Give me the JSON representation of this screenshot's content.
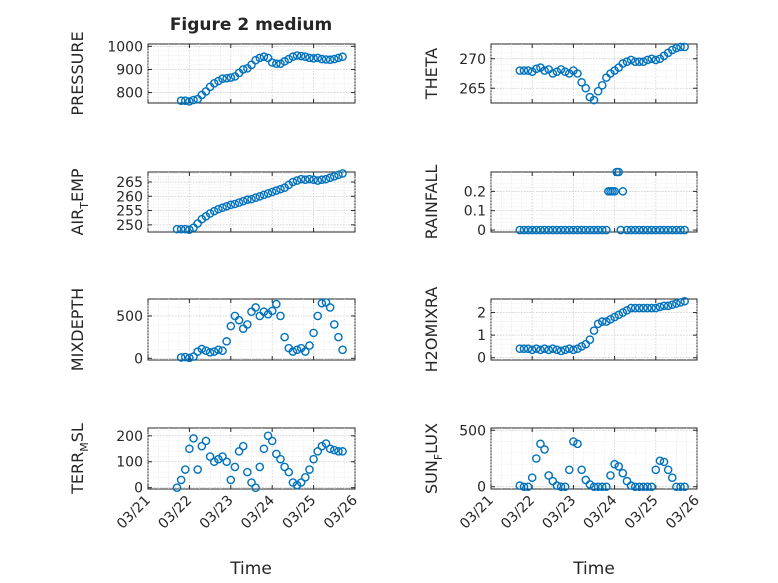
{
  "figure": {
    "title": "Figure 2 medium"
  },
  "colors": {
    "marker": "#0072bd",
    "axis": "#262626"
  },
  "shared_x": {
    "label": "Time",
    "ticks": [
      0,
      1,
      2,
      3,
      4,
      5
    ],
    "tick_labels": [
      "03/21",
      "03/22",
      "03/23",
      "03/24",
      "03/25",
      "03/26"
    ],
    "range": [
      0,
      5
    ]
  },
  "chart_data": [
    {
      "id": "pressure",
      "type": "scatter",
      "ylabel": "PRESSURE",
      "ylabel_sub": "",
      "ylabel_tail": "",
      "ylim": [
        755,
        1010
      ],
      "yticks": [
        800,
        900,
        1000
      ],
      "ytick_labels": [
        "800",
        "900",
        "1000"
      ],
      "x": [
        0.8,
        0.9,
        1.0,
        1.1,
        1.2,
        1.3,
        1.4,
        1.5,
        1.6,
        1.7,
        1.8,
        1.9,
        2.0,
        2.1,
        2.2,
        2.3,
        2.4,
        2.5,
        2.6,
        2.7,
        2.8,
        2.9,
        3.0,
        3.1,
        3.2,
        3.3,
        3.4,
        3.5,
        3.6,
        3.7,
        3.8,
        3.9,
        4.0,
        4.1,
        4.2,
        4.3,
        4.4,
        4.5,
        4.6,
        4.7
      ],
      "y": [
        765,
        765,
        762,
        768,
        772,
        790,
        805,
        825,
        840,
        850,
        860,
        862,
        865,
        870,
        885,
        900,
        905,
        920,
        940,
        950,
        955,
        950,
        930,
        925,
        925,
        935,
        945,
        955,
        960,
        958,
        955,
        950,
        948,
        950,
        945,
        943,
        942,
        945,
        950,
        955
      ]
    },
    {
      "id": "theta",
      "type": "scatter",
      "ylabel": "THETA",
      "ylabel_sub": "",
      "ylabel_tail": "",
      "ylim": [
        262.5,
        272.5
      ],
      "yticks": [
        265,
        270
      ],
      "ytick_labels": [
        "265",
        "270"
      ],
      "x": [
        0.7,
        0.8,
        0.9,
        1.0,
        1.1,
        1.2,
        1.3,
        1.4,
        1.5,
        1.6,
        1.7,
        1.8,
        1.9,
        2.0,
        2.1,
        2.2,
        2.3,
        2.4,
        2.5,
        2.6,
        2.7,
        2.8,
        2.9,
        3.0,
        3.1,
        3.2,
        3.3,
        3.4,
        3.5,
        3.6,
        3.7,
        3.8,
        3.9,
        4.0,
        4.1,
        4.2,
        4.3,
        4.4,
        4.5,
        4.6,
        4.7
      ],
      "y": [
        268,
        268,
        268,
        267.8,
        268.3,
        268.5,
        268,
        268.2,
        267.5,
        267.8,
        268.2,
        267.8,
        267.5,
        268,
        267.5,
        266,
        265,
        263.5,
        263,
        264.5,
        265.5,
        266.8,
        267.5,
        268,
        268.5,
        269.2,
        269.5,
        269.8,
        269.5,
        269.5,
        269.5,
        269.8,
        270,
        269.8,
        270,
        270.5,
        271,
        271.5,
        271.8,
        272,
        272
      ]
    },
    {
      "id": "air_temp",
      "type": "scatter",
      "ylabel": "AIR",
      "ylabel_sub": "T",
      "ylabel_tail": "EMP",
      "ylim": [
        247.5,
        268.5
      ],
      "yticks": [
        250,
        255,
        260,
        265
      ],
      "ytick_labels": [
        "250",
        "255",
        "260",
        "265"
      ],
      "x": [
        0.7,
        0.8,
        0.9,
        1.0,
        1.1,
        1.2,
        1.3,
        1.4,
        1.5,
        1.6,
        1.7,
        1.8,
        1.9,
        2.0,
        2.1,
        2.2,
        2.3,
        2.4,
        2.5,
        2.6,
        2.7,
        2.8,
        2.9,
        3.0,
        3.1,
        3.2,
        3.3,
        3.4,
        3.5,
        3.6,
        3.7,
        3.8,
        3.9,
        4.0,
        4.1,
        4.2,
        4.3,
        4.4,
        4.5,
        4.6,
        4.7
      ],
      "y": [
        248.5,
        248.5,
        248.5,
        248.3,
        249,
        250.5,
        252,
        253,
        254,
        254.8,
        255.5,
        256,
        256.5,
        257,
        257.3,
        257.8,
        258.3,
        258.8,
        259,
        259.5,
        260,
        260.5,
        261,
        261.5,
        262,
        262.5,
        263,
        264,
        265,
        265.5,
        266,
        265.8,
        266,
        265.8,
        265.5,
        265.8,
        266,
        266.5,
        267,
        267.5,
        268
      ]
    },
    {
      "id": "rainfall",
      "type": "scatter",
      "ylabel": "RAINFALL",
      "ylabel_sub": "",
      "ylabel_tail": "",
      "ylim": [
        -0.01,
        0.3
      ],
      "yticks": [
        0,
        0.1,
        0.2
      ],
      "ytick_labels": [
        "0",
        "0.1",
        "0.2"
      ],
      "x": [
        0.7,
        0.8,
        0.9,
        1.0,
        1.1,
        1.2,
        1.3,
        1.4,
        1.5,
        1.6,
        1.7,
        1.8,
        1.9,
        2.0,
        2.1,
        2.2,
        2.3,
        2.4,
        2.5,
        2.6,
        2.7,
        2.8,
        2.85,
        2.9,
        2.95,
        3.0,
        3.05,
        3.1,
        3.15,
        3.2,
        3.3,
        3.4,
        3.5,
        3.6,
        3.7,
        3.8,
        3.9,
        4.0,
        4.1,
        4.2,
        4.3,
        4.4,
        4.5,
        4.6,
        4.7
      ],
      "y": [
        0,
        0,
        0,
        0,
        0,
        0,
        0,
        0,
        0,
        0,
        0,
        0,
        0,
        0,
        0,
        0,
        0,
        0,
        0,
        0,
        0,
        0,
        0.2,
        0.2,
        0.2,
        0.2,
        0.3,
        0.3,
        0,
        0.2,
        0,
        0,
        0,
        0,
        0,
        0,
        0,
        0,
        0,
        0,
        0,
        0,
        0,
        0,
        0
      ]
    },
    {
      "id": "mixdepth",
      "type": "scatter",
      "ylabel": "MIXDEPTH",
      "ylabel_sub": "",
      "ylabel_tail": "",
      "ylim": [
        -20,
        700
      ],
      "yticks": [
        0,
        500
      ],
      "ytick_labels": [
        "0",
        "500"
      ],
      "x": [
        0.8,
        0.9,
        1.0,
        1.1,
        1.2,
        1.3,
        1.4,
        1.5,
        1.6,
        1.7,
        1.8,
        1.9,
        2.0,
        2.1,
        2.2,
        2.3,
        2.4,
        2.5,
        2.6,
        2.7,
        2.8,
        2.9,
        3.0,
        3.1,
        3.2,
        3.3,
        3.4,
        3.5,
        3.6,
        3.7,
        3.8,
        3.9,
        4.0,
        4.1,
        4.2,
        4.3,
        4.4,
        4.5,
        4.6,
        4.7
      ],
      "y": [
        10,
        15,
        5,
        20,
        80,
        110,
        90,
        70,
        80,
        100,
        90,
        200,
        380,
        500,
        450,
        350,
        400,
        550,
        600,
        500,
        550,
        520,
        560,
        640,
        500,
        250,
        120,
        80,
        100,
        120,
        80,
        150,
        300,
        500,
        650,
        660,
        600,
        400,
        250,
        100
      ]
    },
    {
      "id": "h2omixra",
      "type": "scatter",
      "ylabel": "H2OMIXRA",
      "ylabel_sub": "",
      "ylabel_tail": "",
      "ylim": [
        -0.1,
        2.6
      ],
      "yticks": [
        0,
        1,
        2
      ],
      "ytick_labels": [
        "0",
        "1",
        "2"
      ],
      "x": [
        0.7,
        0.8,
        0.9,
        1.0,
        1.1,
        1.2,
        1.3,
        1.4,
        1.5,
        1.6,
        1.7,
        1.8,
        1.9,
        2.0,
        2.1,
        2.2,
        2.3,
        2.4,
        2.5,
        2.6,
        2.7,
        2.8,
        2.9,
        3.0,
        3.1,
        3.2,
        3.3,
        3.4,
        3.5,
        3.6,
        3.7,
        3.8,
        3.9,
        4.0,
        4.1,
        4.2,
        4.3,
        4.4,
        4.5,
        4.6,
        4.7
      ],
      "y": [
        0.4,
        0.4,
        0.4,
        0.35,
        0.4,
        0.35,
        0.4,
        0.35,
        0.4,
        0.35,
        0.3,
        0.35,
        0.4,
        0.35,
        0.4,
        0.5,
        0.6,
        0.8,
        1.2,
        1.5,
        1.6,
        1.6,
        1.7,
        1.8,
        1.9,
        2.0,
        2.1,
        2.2,
        2.2,
        2.2,
        2.2,
        2.2,
        2.2,
        2.2,
        2.25,
        2.3,
        2.3,
        2.35,
        2.4,
        2.45,
        2.5
      ]
    },
    {
      "id": "terr_msl",
      "type": "scatter",
      "ylabel": "TERR",
      "ylabel_sub": "M",
      "ylabel_tail": "SL",
      "ylim": [
        -5,
        230
      ],
      "yticks": [
        0,
        100,
        200
      ],
      "ytick_labels": [
        "0",
        "100",
        "200"
      ],
      "x": [
        0.7,
        0.8,
        0.9,
        1.0,
        1.1,
        1.2,
        1.3,
        1.4,
        1.5,
        1.6,
        1.7,
        1.8,
        1.9,
        2.0,
        2.1,
        2.2,
        2.3,
        2.4,
        2.5,
        2.6,
        2.7,
        2.8,
        2.9,
        3.0,
        3.1,
        3.2,
        3.3,
        3.4,
        3.5,
        3.6,
        3.7,
        3.8,
        3.9,
        4.0,
        4.1,
        4.2,
        4.3,
        4.4,
        4.5,
        4.6,
        4.7
      ],
      "y": [
        0,
        30,
        70,
        150,
        190,
        70,
        160,
        180,
        120,
        100,
        110,
        120,
        100,
        30,
        80,
        140,
        160,
        60,
        20,
        0,
        80,
        150,
        200,
        180,
        130,
        110,
        80,
        60,
        20,
        10,
        20,
        40,
        70,
        110,
        140,
        160,
        170,
        150,
        145,
        140,
        140
      ]
    },
    {
      "id": "sun_flux",
      "type": "scatter",
      "ylabel": "SUN",
      "ylabel_sub": "F",
      "ylabel_tail": "LUX",
      "ylim": [
        -20,
        520
      ],
      "yticks": [
        0,
        500
      ],
      "ytick_labels": [
        "0",
        "500"
      ],
      "x": [
        0.7,
        0.8,
        0.9,
        1.0,
        1.1,
        1.2,
        1.3,
        1.4,
        1.5,
        1.6,
        1.7,
        1.8,
        1.9,
        2.0,
        2.1,
        2.2,
        2.3,
        2.4,
        2.5,
        2.6,
        2.7,
        2.8,
        2.9,
        3.0,
        3.1,
        3.2,
        3.3,
        3.4,
        3.5,
        3.6,
        3.7,
        3.8,
        3.9,
        4.0,
        4.1,
        4.2,
        4.3,
        4.4,
        4.5,
        4.6,
        4.7
      ],
      "y": [
        10,
        0,
        0,
        80,
        250,
        380,
        330,
        100,
        50,
        10,
        0,
        0,
        150,
        400,
        380,
        150,
        60,
        20,
        0,
        0,
        0,
        0,
        100,
        200,
        180,
        120,
        50,
        10,
        0,
        0,
        0,
        0,
        0,
        150,
        230,
        220,
        150,
        80,
        0,
        0,
        0
      ]
    }
  ]
}
